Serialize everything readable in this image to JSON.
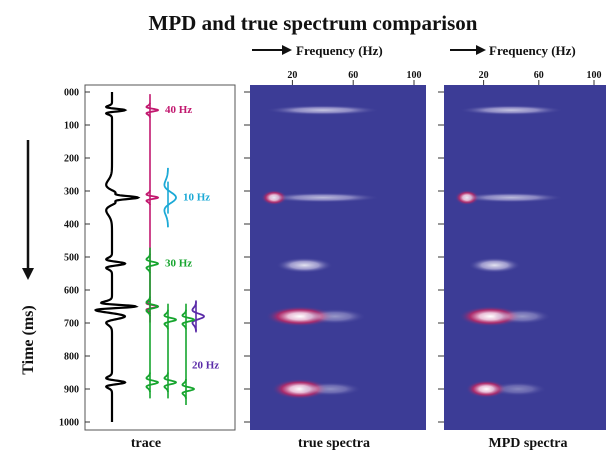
{
  "title": "MPD and true spectrum comparison",
  "colors": {
    "background": "#3c3c96",
    "trace": "#000000",
    "magenta": "#c2186f",
    "cyan": "#1ba9d6",
    "green": "#16a52e",
    "purple": "#5a2ba8"
  },
  "chart_data": [
    {
      "type": "line",
      "panel": "trace",
      "xlabel": "trace",
      "ylabel": "Time (ms)",
      "y_ticks": [
        "000",
        "100",
        "200",
        "300",
        "400",
        "500",
        "600",
        "700",
        "800",
        "900",
        "1000"
      ],
      "ylim": [
        0,
        1000
      ],
      "y_inverted": true,
      "wavelets": [
        {
          "label": "40 Hz",
          "frequency_hz": 40,
          "color": "magenta",
          "times_ms": [
            55,
            320,
            650
          ]
        },
        {
          "label": "10 Hz",
          "frequency_hz": 10,
          "color": "cyan",
          "times_ms": [
            320
          ]
        },
        {
          "label": "30 Hz",
          "frequency_hz": 30,
          "color": "green",
          "times_ms": [
            520,
            650,
            880
          ]
        },
        {
          "label": "20 Hz",
          "frequency_hz": 20,
          "color": "purple",
          "times_ms": [
            680
          ]
        }
      ],
      "extra_wavelets": [
        {
          "color": "green",
          "times_ms": [
            690,
            880
          ]
        },
        {
          "color": "green",
          "times_ms": [
            690,
            900
          ]
        }
      ],
      "trace_events_ms": [
        55,
        320,
        520,
        650,
        680,
        880
      ]
    },
    {
      "type": "heatmap",
      "panel": "true spectra",
      "xlabel": "true spectra",
      "top_label": "Frequency (Hz)",
      "x_ticks": [
        "20",
        "60",
        "100"
      ],
      "xlim": [
        0,
        100
      ],
      "ylim": [
        0,
        1000
      ],
      "blobs": [
        {
          "time_ms": 55,
          "freq_hz": 40,
          "freq_width_hz": 35,
          "time_width_ms": 6,
          "intensity": 0.6
        },
        {
          "time_ms": 320,
          "freq_hz": 8,
          "freq_width_hz": 6,
          "time_width_ms": 14,
          "intensity": 0.85
        },
        {
          "time_ms": 320,
          "freq_hz": 40,
          "freq_width_hz": 35,
          "time_width_ms": 6,
          "intensity": 0.55
        },
        {
          "time_ms": 525,
          "freq_hz": 28,
          "freq_width_hz": 16,
          "time_width_ms": 14,
          "intensity": 0.75
        },
        {
          "time_ms": 680,
          "freq_hz": 25,
          "freq_width_hz": 20,
          "time_width_ms": 22,
          "intensity": 1.0
        },
        {
          "time_ms": 680,
          "freq_hz": 48,
          "freq_width_hz": 18,
          "time_width_ms": 14,
          "intensity": 0.35
        },
        {
          "time_ms": 900,
          "freq_hz": 25,
          "freq_width_hz": 16,
          "time_width_ms": 22,
          "intensity": 1.0
        },
        {
          "time_ms": 900,
          "freq_hz": 45,
          "freq_width_hz": 18,
          "time_width_ms": 12,
          "intensity": 0.3
        }
      ]
    },
    {
      "type": "heatmap",
      "panel": "MPD spectra",
      "xlabel": "MPD spectra",
      "top_label": "Frequency (Hz)",
      "x_ticks": [
        "20",
        "60",
        "100"
      ],
      "xlim": [
        0,
        100
      ],
      "ylim": [
        0,
        1000
      ],
      "blobs": [
        {
          "time_ms": 55,
          "freq_hz": 40,
          "freq_width_hz": 35,
          "time_width_ms": 6,
          "intensity": 0.6
        },
        {
          "time_ms": 320,
          "freq_hz": 8,
          "freq_width_hz": 6,
          "time_width_ms": 14,
          "intensity": 0.85
        },
        {
          "time_ms": 320,
          "freq_hz": 40,
          "freq_width_hz": 35,
          "time_width_ms": 6,
          "intensity": 0.55
        },
        {
          "time_ms": 525,
          "freq_hz": 28,
          "freq_width_hz": 16,
          "time_width_ms": 14,
          "intensity": 0.75
        },
        {
          "time_ms": 680,
          "freq_hz": 25,
          "freq_width_hz": 20,
          "time_width_ms": 22,
          "intensity": 1.0
        },
        {
          "time_ms": 680,
          "freq_hz": 48,
          "freq_width_hz": 18,
          "time_width_ms": 14,
          "intensity": 0.35
        },
        {
          "time_ms": 900,
          "freq_hz": 22,
          "freq_width_hz": 12,
          "time_width_ms": 18,
          "intensity": 0.9
        },
        {
          "time_ms": 900,
          "freq_hz": 45,
          "freq_width_hz": 18,
          "time_width_ms": 12,
          "intensity": 0.25
        }
      ]
    }
  ]
}
